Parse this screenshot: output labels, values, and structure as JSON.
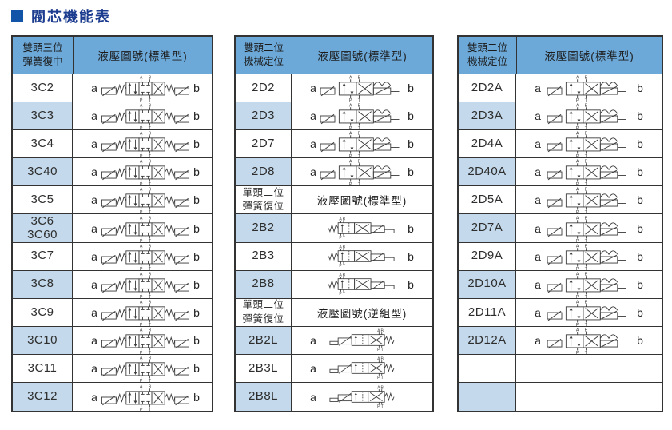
{
  "page": {
    "title": "閥芯機能表"
  },
  "colors": {
    "header_bg": "#6CA9D9",
    "alt_row_bg": "#C4DAEC",
    "border": "#333333",
    "title_color": "#1B3C8F",
    "title_square": "#1254A8",
    "diagram_stroke": "#3a3a3a"
  },
  "symbols": {
    "ports": {
      "top": [
        "A",
        "B"
      ],
      "bottom": [
        "P",
        "T"
      ]
    }
  },
  "tables": [
    {
      "header": {
        "col1": "雙頭三位\n彈簧復中",
        "col2": "液壓圖號(標準型)"
      },
      "rows": [
        {
          "code": "3C2",
          "a": "a",
          "b": "b",
          "symbol": "valve-3c"
        },
        {
          "code": "3C3",
          "a": "a",
          "b": "b",
          "symbol": "valve-3c"
        },
        {
          "code": "3C4",
          "a": "a",
          "b": "b",
          "symbol": "valve-3c"
        },
        {
          "code": "3C40",
          "a": "a",
          "b": "b",
          "symbol": "valve-3c"
        },
        {
          "code": "3C5",
          "a": "a",
          "b": "b",
          "symbol": "valve-3c"
        },
        {
          "code": "3C6\n3C60",
          "a": "a",
          "b": "b",
          "symbol": "valve-3c"
        },
        {
          "code": "3C7",
          "a": "a",
          "b": "b",
          "symbol": "valve-3c"
        },
        {
          "code": "3C8",
          "a": "a",
          "b": "b",
          "symbol": "valve-3c"
        },
        {
          "code": "3C9",
          "a": "a",
          "b": "b",
          "symbol": "valve-3c"
        },
        {
          "code": "3C10",
          "a": "a",
          "b": "b",
          "symbol": "valve-3c"
        },
        {
          "code": "3C11",
          "a": "a",
          "b": "b",
          "symbol": "valve-3c"
        },
        {
          "code": "3C12",
          "a": "a",
          "b": "b",
          "symbol": "valve-3c"
        }
      ]
    },
    {
      "header": {
        "col1": "雙頭二位\n機械定位",
        "col2": "液壓圖號(標準型)"
      },
      "rows": [
        {
          "code": "2D2",
          "a": "a",
          "b": "b",
          "symbol": "valve-2d"
        },
        {
          "code": "2D3",
          "a": "a",
          "b": "b",
          "symbol": "valve-2d"
        },
        {
          "code": "2D7",
          "a": "a",
          "b": "b",
          "symbol": "valve-2d"
        },
        {
          "code": "2D8",
          "a": "a",
          "b": "b",
          "symbol": "valve-2d"
        },
        {
          "subheader": true,
          "col1": "單頭二位\n彈簧復位",
          "col2": "液壓圖號(標準型)"
        },
        {
          "code": "2B2",
          "a": "",
          "b": "b",
          "symbol": "valve-2b"
        },
        {
          "code": "2B3",
          "a": "",
          "b": "b",
          "symbol": "valve-2b"
        },
        {
          "code": "2B8",
          "a": "",
          "b": "b",
          "symbol": "valve-2b"
        },
        {
          "subheader": true,
          "col1": "單頭二位\n彈簧復位",
          "col2": "液壓圖號(逆組型)"
        },
        {
          "code": "2B2L",
          "a": "a",
          "b": "",
          "symbol": "valve-2bl"
        },
        {
          "code": "2B3L",
          "a": "a",
          "b": "",
          "symbol": "valve-2bl"
        },
        {
          "code": "2B8L",
          "a": "a",
          "b": "",
          "symbol": "valve-2bl"
        }
      ]
    },
    {
      "header": {
        "col1": "雙頭二位\n機械定位",
        "col2": "液壓圖號(標準型)"
      },
      "rows": [
        {
          "code": "2D2A",
          "a": "a",
          "b": "b",
          "symbol": "valve-2da"
        },
        {
          "code": "2D3A",
          "a": "a",
          "b": "b",
          "symbol": "valve-2da"
        },
        {
          "code": "2D4A",
          "a": "a",
          "b": "b",
          "symbol": "valve-2da"
        },
        {
          "code": "2D40A",
          "a": "a",
          "b": "b",
          "symbol": "valve-2da"
        },
        {
          "code": "2D5A",
          "a": "a",
          "b": "b",
          "symbol": "valve-2da"
        },
        {
          "code": "2D7A",
          "a": "a",
          "b": "b",
          "symbol": "valve-2da"
        },
        {
          "code": "2D9A",
          "a": "a",
          "b": "b",
          "symbol": "valve-2da"
        },
        {
          "code": "2D10A",
          "a": "a",
          "b": "b",
          "symbol": "valve-2da"
        },
        {
          "code": "2D11A",
          "a": "a",
          "b": "b",
          "symbol": "valve-2da"
        },
        {
          "code": "2D12A",
          "a": "a",
          "b": "b",
          "symbol": "valve-2da"
        },
        {
          "code": "",
          "a": "",
          "b": "",
          "symbol": ""
        },
        {
          "code": "",
          "a": "",
          "b": "",
          "symbol": ""
        }
      ]
    }
  ]
}
